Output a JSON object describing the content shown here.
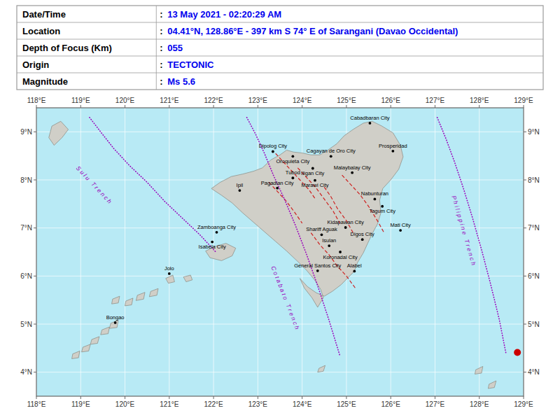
{
  "chart_data": {
    "type": "map",
    "table": {
      "separator": ":",
      "color": "#0000ee",
      "rows": [
        {
          "label": "Date/Time",
          "value": "13 May 2021 - 02:20:29 AM"
        },
        {
          "label": "Location",
          "value": "04.41°N, 128.86°E - 397 km S 74° E of Sarangani (Davao Occidental)"
        },
        {
          "label": "Depth of Focus (Km)",
          "value": "055"
        },
        {
          "label": "Origin",
          "value": "TECTONIC"
        },
        {
          "label": "Magnitude",
          "value": "Ms 5.6"
        }
      ]
    },
    "xlim": [
      118,
      129
    ],
    "ylim": [
      3.5,
      9.5
    ],
    "xticks": [
      {
        "value": 118,
        "label": "118°E"
      },
      {
        "value": 119,
        "label": "119°E"
      },
      {
        "value": 120,
        "label": "120°E"
      },
      {
        "value": 121,
        "label": "121°E"
      },
      {
        "value": 122,
        "label": "122°E"
      },
      {
        "value": 123,
        "label": "123°E"
      },
      {
        "value": 124,
        "label": "124°E"
      },
      {
        "value": 125,
        "label": "125°E"
      },
      {
        "value": 126,
        "label": "126°E"
      },
      {
        "value": 127,
        "label": "127°E"
      },
      {
        "value": 128,
        "label": "128°E"
      },
      {
        "value": 129,
        "label": "129°E"
      }
    ],
    "yticks": [
      {
        "value": 4,
        "label": "4°N"
      },
      {
        "value": 5,
        "label": "5°N"
      },
      {
        "value": 6,
        "label": "6°N"
      },
      {
        "value": 7,
        "label": "7°N"
      },
      {
        "value": 8,
        "label": "8°N"
      },
      {
        "value": 9,
        "label": "9°N"
      }
    ],
    "grid": true,
    "sea_color": "#b8eaf5",
    "land": {
      "color": "#d0cfc8",
      "shapes": [
        {
          "lons": [
            121.95,
            122.15,
            122.4,
            122.65,
            122.9,
            123.1,
            123.3,
            123.5,
            123.65,
            123.8,
            124.0,
            124.2,
            124.4,
            124.58,
            124.78,
            124.95,
            125.15,
            125.38,
            125.58,
            125.8,
            126.05,
            126.22,
            126.28,
            126.18,
            126.0,
            125.82,
            125.75,
            125.78,
            125.7,
            125.58,
            125.48,
            125.38,
            125.25,
            125.18,
            125.05,
            124.88,
            124.68,
            124.5,
            124.32,
            124.12,
            123.95,
            124.05,
            124.22,
            124.35,
            124.48,
            124.42,
            124.28,
            124.1,
            123.88,
            123.65,
            123.4,
            123.15,
            122.9,
            122.65,
            122.42,
            122.18,
            121.95
          ],
          "lats": [
            7.82,
            7.95,
            8.07,
            8.12,
            8.18,
            8.25,
            8.42,
            8.52,
            8.62,
            8.58,
            8.56,
            8.52,
            8.52,
            8.62,
            8.75,
            8.92,
            9.05,
            9.18,
            9.22,
            9.12,
            8.98,
            8.72,
            8.48,
            8.22,
            8.0,
            7.82,
            7.58,
            7.32,
            7.08,
            6.88,
            6.68,
            6.48,
            6.28,
            6.1,
            5.98,
            5.82,
            5.68,
            5.58,
            5.65,
            5.78,
            5.95,
            5.75,
            5.55,
            5.35,
            5.55,
            5.72,
            5.92,
            6.12,
            6.32,
            6.52,
            6.72,
            6.92,
            7.12,
            7.32,
            7.52,
            7.68,
            7.82
          ]
        },
        {
          "lons": [
            121.82,
            122.05,
            122.28,
            122.5,
            122.42,
            122.18,
            121.92,
            121.82
          ],
          "lats": [
            6.52,
            6.62,
            6.68,
            6.58,
            6.42,
            6.32,
            6.38,
            6.52
          ]
        },
        {
          "lons": [
            121.32,
            121.48,
            121.52,
            121.38,
            121.32
          ],
          "lats": [
            5.98,
            6.02,
            5.92,
            5.88,
            5.98
          ]
        },
        {
          "lons": [
            120.92,
            121.08,
            121.12,
            120.98,
            120.92
          ],
          "lats": [
            5.95,
            6.02,
            5.88,
            5.85,
            5.95
          ]
        },
        {
          "lons": [
            120.58,
            120.75,
            120.72,
            120.55,
            120.58
          ],
          "lats": [
            5.68,
            5.74,
            5.6,
            5.57,
            5.68
          ]
        },
        {
          "lons": [
            120.28,
            120.45,
            120.42,
            120.25,
            120.28
          ],
          "lats": [
            5.6,
            5.66,
            5.52,
            5.49,
            5.6
          ]
        },
        {
          "lons": [
            120.02,
            120.18,
            120.15,
            120.0,
            120.02
          ],
          "lats": [
            5.48,
            5.54,
            5.4,
            5.38,
            5.48
          ]
        },
        {
          "lons": [
            119.72,
            119.88,
            119.85,
            119.7,
            119.72
          ],
          "lats": [
            5.52,
            5.58,
            5.44,
            5.42,
            5.52
          ]
        },
        {
          "lons": [
            119.68,
            119.85,
            119.82,
            119.65,
            119.68
          ],
          "lats": [
            5.02,
            5.08,
            4.93,
            4.91,
            5.02
          ]
        },
        {
          "lons": [
            119.48,
            119.65,
            119.62,
            119.45,
            119.48
          ],
          "lats": [
            4.88,
            4.94,
            4.8,
            4.78,
            4.88
          ]
        },
        {
          "lons": [
            119.25,
            119.42,
            119.38,
            119.22,
            119.25
          ],
          "lats": [
            4.68,
            4.74,
            4.6,
            4.58,
            4.68
          ]
        },
        {
          "lons": [
            119.05,
            119.22,
            119.18,
            119.02,
            119.05
          ],
          "lats": [
            4.52,
            4.58,
            4.44,
            4.42,
            4.52
          ]
        },
        {
          "lons": [
            118.82,
            118.98,
            118.95,
            118.8,
            118.82
          ],
          "lats": [
            4.38,
            4.44,
            4.3,
            4.28,
            4.38
          ]
        },
        {
          "lons": [
            118.35,
            118.55,
            118.72,
            118.58,
            118.4,
            118.28,
            118.35
          ],
          "lats": [
            9.12,
            9.22,
            9.05,
            8.88,
            8.72,
            8.88,
            9.12
          ]
        },
        {
          "lons": [
            124.38,
            124.52,
            124.48,
            124.35
          ],
          "lats": [
            4.08,
            4.14,
            4.02,
            4.0
          ]
        },
        {
          "lons": [
            127.92,
            128.08,
            128.05,
            127.9
          ],
          "lats": [
            4.05,
            4.12,
            3.98,
            3.96
          ]
        },
        {
          "lons": [
            128.22,
            128.38,
            128.34,
            128.2
          ],
          "lats": [
            3.75,
            3.82,
            3.68,
            3.66
          ]
        }
      ]
    },
    "faults": {
      "color": "#cc0000",
      "lines": [
        {
          "lons": [
            123.4,
            123.55,
            123.75,
            123.95,
            124.15,
            124.3
          ],
          "lats": [
            8.55,
            8.4,
            8.2,
            8.0,
            7.8,
            7.6
          ]
        },
        {
          "lons": [
            123.9,
            124.1,
            124.3,
            124.5,
            124.7,
            124.85
          ],
          "lats": [
            8.25,
            8.05,
            7.85,
            7.6,
            7.35,
            7.1
          ]
        },
        {
          "lons": [
            124.5,
            124.65,
            124.8,
            125.0,
            125.15
          ],
          "lats": [
            7.85,
            7.65,
            7.4,
            7.15,
            6.9
          ]
        },
        {
          "lons": [
            124.2,
            124.4,
            124.6,
            124.8,
            125.0,
            125.2
          ],
          "lats": [
            6.9,
            6.65,
            6.45,
            6.2,
            6.0,
            5.75
          ]
        },
        {
          "lons": [
            124.9,
            125.1,
            125.3,
            125.5,
            125.7,
            125.85
          ],
          "lats": [
            8.1,
            7.9,
            7.7,
            7.45,
            7.15,
            6.9
          ]
        },
        {
          "lons": [
            123.25,
            123.45,
            123.65,
            123.85,
            124.0
          ],
          "lats": [
            7.95,
            7.75,
            7.55,
            7.3,
            7.1
          ]
        }
      ]
    },
    "trenches": {
      "color": "#9900bb",
      "lines": [
        {
          "label": "S u l u   T r e n c h",
          "label_lon": 119.3,
          "label_lat": 7.9,
          "lons": [
            119.2,
            119.45,
            119.75,
            120.1,
            120.5,
            120.9,
            121.3,
            121.7,
            122.05
          ],
          "lats": [
            9.3,
            9.0,
            8.65,
            8.3,
            7.95,
            7.55,
            7.2,
            6.85,
            6.5
          ]
        },
        {
          "label": "C o t a b a t o   T r e n c h",
          "label_lon": 123.62,
          "label_lat": 5.55,
          "lons": [
            122.75,
            122.95,
            123.15,
            123.35,
            123.6,
            123.85,
            124.1,
            124.35,
            124.6,
            124.85
          ],
          "lats": [
            9.3,
            8.95,
            8.55,
            8.1,
            7.6,
            7.05,
            6.45,
            5.8,
            5.1,
            4.35
          ]
        },
        {
          "label": "P h i l i p p i n e   T r e n c h",
          "label_lon": 127.65,
          "label_lat": 6.95,
          "lons": [
            127.05,
            127.25,
            127.45,
            127.65,
            127.85,
            128.05,
            128.25,
            128.45,
            128.6
          ],
          "lats": [
            9.3,
            8.85,
            8.35,
            7.8,
            7.2,
            6.55,
            5.85,
            5.1,
            4.4
          ]
        }
      ]
    },
    "cities": [
      {
        "name": "Dipolog City",
        "lon": 123.34,
        "lat": 8.59
      },
      {
        "name": "Cagayan de Oro City",
        "lon": 124.65,
        "lat": 8.49
      },
      {
        "name": "Cabadbaran City",
        "lon": 125.53,
        "lat": 9.18
      },
      {
        "name": "Prosperidad",
        "lon": 126.05,
        "lat": 8.6
      },
      {
        "name": "Oroquieta City",
        "lon": 123.79,
        "lat": 8.49
      },
      {
        "name": "Iligan City",
        "lon": 124.24,
        "lat": 8.24
      },
      {
        "name": "Malaybalay City",
        "lon": 125.13,
        "lat": 8.15
      },
      {
        "name": "Tubod",
        "lon": 123.79,
        "lat": 8.04
      },
      {
        "name": "Marawi City",
        "lon": 124.29,
        "lat": 7.99
      },
      {
        "name": "Nabunturan",
        "lon": 125.64,
        "lat": 7.6
      },
      {
        "name": "Ipil",
        "lon": 122.59,
        "lat": 7.78
      },
      {
        "name": "Pagadian City",
        "lon": 123.44,
        "lat": 7.83
      },
      {
        "name": "Tagum City",
        "lon": 125.81,
        "lat": 7.45
      },
      {
        "name": "Kidapawan City",
        "lon": 124.98,
        "lat": 7.01
      },
      {
        "name": "Zamboanga City",
        "lon": 122.07,
        "lat": 6.91
      },
      {
        "name": "Shariff Aguak",
        "lon": 124.44,
        "lat": 6.86
      },
      {
        "name": "Mati City",
        "lon": 126.22,
        "lat": 6.95
      },
      {
        "name": "Isabela City",
        "lon": 121.97,
        "lat": 6.71
      },
      {
        "name": "Isulan",
        "lon": 124.61,
        "lat": 6.63
      },
      {
        "name": "Digos City",
        "lon": 125.36,
        "lat": 6.76
      },
      {
        "name": "Koronadal City",
        "lon": 124.86,
        "lat": 6.5
      },
      {
        "name": "General Santos City",
        "lon": 124.35,
        "lat": 6.11
      },
      {
        "name": "Alabel",
        "lon": 125.18,
        "lat": 6.1
      },
      {
        "name": "Jolo",
        "lon": 121.0,
        "lat": 6.05
      },
      {
        "name": "Bongao",
        "lon": 119.78,
        "lat": 5.03
      }
    ],
    "epicenter": {
      "lon": 128.86,
      "lat": 4.41,
      "color": "#cc0000"
    }
  }
}
